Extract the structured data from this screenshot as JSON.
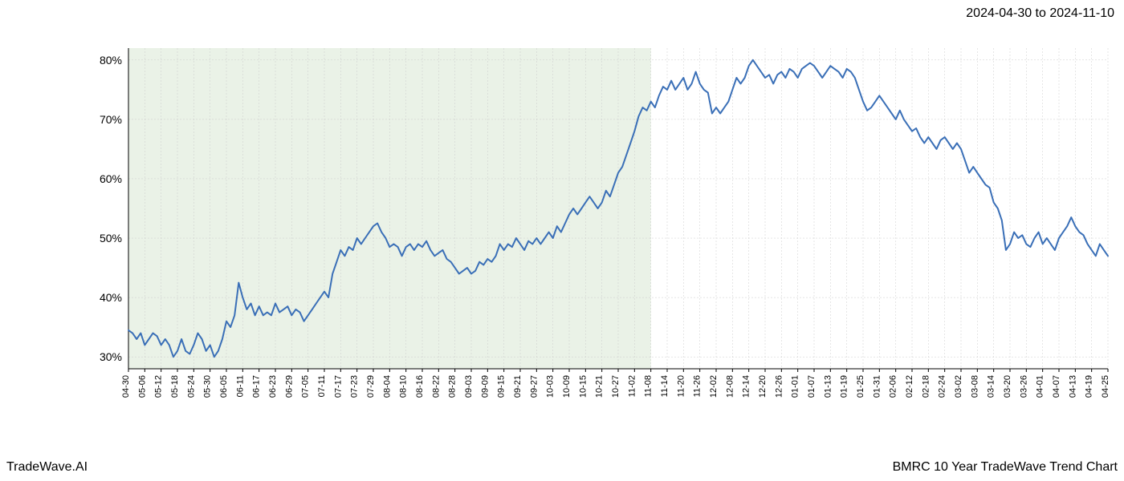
{
  "header": {
    "date_range": "2024-04-30 to 2024-11-10"
  },
  "footer": {
    "left": "TradeWave.AI",
    "right": "BMRC 10 Year TradeWave Trend Chart"
  },
  "chart": {
    "type": "line",
    "background_color": "#ffffff",
    "highlight_fill": "#d6e6d0",
    "highlight_opacity": 0.5,
    "highlight_from_index": 0,
    "highlight_to_index": 32,
    "line_color": "#3a6fb7",
    "line_width": 2,
    "grid_color": "#cccccc",
    "grid_dash": "2,2",
    "axis_color": "#000000",
    "ylabel_fontsize": 14,
    "xlabel_fontsize": 11,
    "ylim": [
      28,
      82
    ],
    "yticks": [
      30,
      40,
      50,
      60,
      70,
      80
    ],
    "ytick_labels": [
      "30%",
      "40%",
      "50%",
      "60%",
      "70%",
      "80%"
    ],
    "x_labels": [
      "04-30",
      "05-06",
      "05-12",
      "05-18",
      "05-24",
      "05-30",
      "06-05",
      "06-11",
      "06-17",
      "06-23",
      "06-29",
      "07-05",
      "07-11",
      "07-17",
      "07-23",
      "07-29",
      "08-04",
      "08-10",
      "08-16",
      "08-22",
      "08-28",
      "09-03",
      "09-09",
      "09-15",
      "09-21",
      "09-27",
      "10-03",
      "10-09",
      "10-15",
      "10-21",
      "10-27",
      "11-02",
      "11-08",
      "11-14",
      "11-20",
      "11-26",
      "12-02",
      "12-08",
      "12-14",
      "12-20",
      "12-26",
      "01-01",
      "01-07",
      "01-13",
      "01-19",
      "01-25",
      "01-31",
      "02-06",
      "02-12",
      "02-18",
      "02-24",
      "03-02",
      "03-08",
      "03-14",
      "03-20",
      "03-26",
      "04-01",
      "04-07",
      "04-13",
      "04-19",
      "04-25"
    ],
    "values": [
      34.5,
      34,
      33,
      34,
      32,
      33,
      34,
      33.5,
      32,
      33,
      32,
      30,
      31,
      33,
      31,
      30.5,
      32,
      34,
      33,
      31,
      32,
      30,
      31,
      33,
      36,
      35,
      37,
      42.5,
      40,
      38,
      39,
      37,
      38.5,
      37,
      37.5,
      37,
      39,
      37.5,
      38,
      38.5,
      37,
      38,
      37.5,
      36,
      37,
      38,
      39,
      40,
      41,
      40,
      44,
      46,
      48,
      47,
      48.5,
      48,
      50,
      49,
      50,
      51,
      52,
      52.5,
      51,
      50,
      48.5,
      49,
      48.5,
      47,
      48.5,
      49,
      48,
      49,
      48.5,
      49.5,
      48,
      47,
      47.5,
      48,
      46.5,
      46,
      45,
      44,
      44.5,
      45,
      44,
      44.5,
      46,
      45.5,
      46.5,
      46,
      47,
      49,
      48,
      49,
      48.5,
      50,
      49,
      48,
      49.5,
      49,
      50,
      49,
      50,
      51,
      50,
      52,
      51,
      52.5,
      54,
      55,
      54,
      55,
      56,
      57,
      56,
      55,
      56,
      58,
      57,
      59,
      61,
      62,
      64,
      66,
      68,
      70.5,
      72,
      71.5,
      73,
      72,
      74,
      75.5,
      75,
      76.5,
      75,
      76,
      77,
      75,
      76,
      78,
      76,
      75,
      74.5,
      71,
      72,
      71,
      72,
      73,
      75,
      77,
      76,
      77,
      79,
      80,
      79,
      78,
      77,
      77.5,
      76,
      77.5,
      78,
      77,
      78.5,
      78,
      77,
      78.5,
      79,
      79.5,
      79,
      78,
      77,
      78,
      79,
      78.5,
      78,
      77,
      78.5,
      78,
      77,
      75,
      73,
      71.5,
      72,
      73,
      74,
      73,
      72,
      71,
      70,
      71.5,
      70,
      69,
      68,
      68.5,
      67,
      66,
      67,
      66,
      65,
      66.5,
      67,
      66,
      65,
      66,
      65,
      63,
      61,
      62,
      61,
      60,
      59,
      58.5,
      56,
      55,
      53,
      48,
      49,
      51,
      50,
      50.5,
      49,
      48.5,
      50,
      51,
      49,
      50,
      49,
      48,
      50,
      51,
      52,
      53.5,
      52,
      51,
      50.5,
      49,
      48,
      47,
      49,
      48,
      47
    ]
  }
}
